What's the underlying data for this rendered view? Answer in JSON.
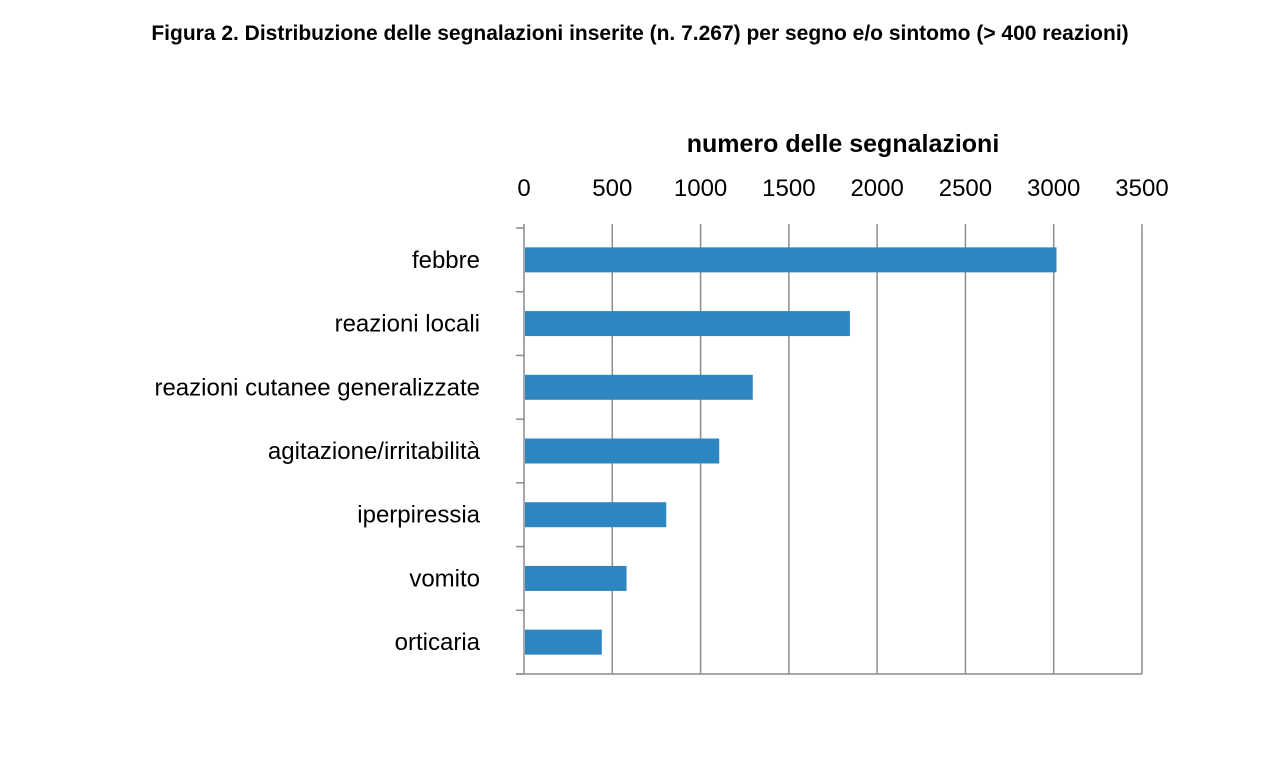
{
  "title": "Figura 2. Distribuzione delle segnalazioni inserite (n. 7.267) per segno e/o sintomo  (> 400 reazioni)",
  "chart_data": {
    "type": "bar",
    "orientation": "horizontal",
    "title": "Figura 2. Distribuzione delle segnalazioni inserite (n. 7.267) per segno e/o sintomo  (> 400 reazioni)",
    "xlabel": "numero delle segnalazioni",
    "xlabel_position": "top",
    "ylabel": "",
    "categories": [
      "febbre",
      "reazioni locali",
      "reazioni cutanee generalizzate",
      "agitazione/irritabilità",
      "iperpiressia",
      "vomito",
      "orticaria"
    ],
    "values": [
      3010,
      1840,
      1290,
      1100,
      800,
      575,
      435
    ],
    "xlim": [
      0,
      3500
    ],
    "xticks": [
      0,
      500,
      1000,
      1500,
      2000,
      2500,
      3000,
      3500
    ],
    "xtick_labels": [
      "0",
      "500",
      "1000",
      "1500",
      "2000",
      "2500",
      "3000",
      "3500"
    ],
    "grid": "vertical",
    "legend": "none",
    "bar_color": "#2e86c1"
  }
}
